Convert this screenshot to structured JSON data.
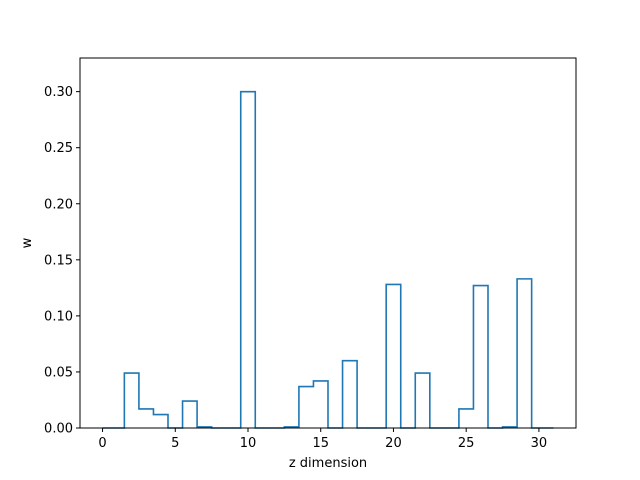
{
  "chart_data": {
    "type": "step",
    "title": "",
    "xlabel": "z dimension",
    "ylabel": "w",
    "xlim": [
      -1.55,
      32.55
    ],
    "ylim": [
      0.0,
      0.33
    ],
    "x_ticks": [
      0,
      5,
      10,
      15,
      20,
      25,
      30
    ],
    "x_tick_labels": [
      "0",
      "5",
      "10",
      "15",
      "20",
      "25",
      "30"
    ],
    "y_ticks": [
      0.0,
      0.05,
      0.1,
      0.15,
      0.2,
      0.25,
      0.3
    ],
    "y_tick_labels": [
      "0.00",
      "0.05",
      "0.10",
      "0.15",
      "0.20",
      "0.25",
      "0.30"
    ],
    "grid": false,
    "series_color": "#1f77b4",
    "series": [
      {
        "x": [
          0,
          1,
          2,
          3,
          4,
          5,
          6,
          7,
          8,
          9,
          10,
          11,
          12,
          13,
          14,
          15,
          16,
          17,
          18,
          19,
          20,
          21,
          22,
          23,
          24,
          25,
          26,
          27,
          28,
          29,
          30,
          31
        ],
        "values": [
          0.0,
          0.0,
          0.049,
          0.017,
          0.012,
          0.0,
          0.024,
          0.001,
          0.0,
          0.0,
          0.3,
          0.0,
          0.0,
          0.001,
          0.037,
          0.042,
          0.0,
          0.06,
          0.0,
          0.0,
          0.128,
          0.0,
          0.049,
          0.0,
          0.0,
          0.017,
          0.127,
          0.0,
          0.001,
          0.133,
          0.0,
          0.0
        ]
      }
    ]
  }
}
